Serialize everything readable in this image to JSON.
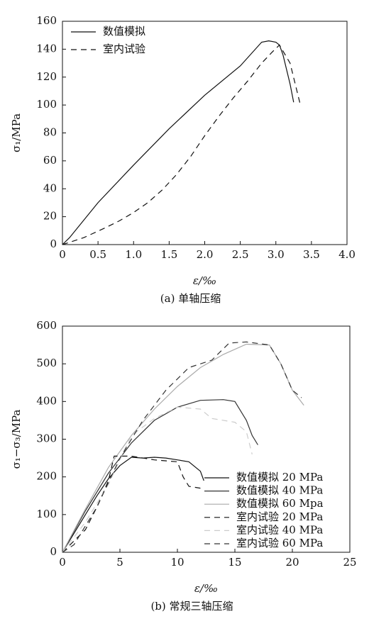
{
  "chart_data": [
    {
      "type": "line",
      "caption": "(a) 单轴压缩",
      "xlabel": "ε/‰",
      "ylabel": "σ₁/MPa",
      "xlim": [
        0,
        4
      ],
      "ylim": [
        0,
        160
      ],
      "xticks": [
        0,
        0.5,
        {
          "value": 1,
          "label": "1.0"
        },
        1.5,
        {
          "value": 2,
          "label": "2.0"
        },
        2.5,
        {
          "value": 3,
          "label": "3.0"
        },
        3.5,
        {
          "value": 4,
          "label": "4.0"
        }
      ],
      "yticks": [
        0,
        20,
        40,
        60,
        80,
        100,
        120,
        140,
        160
      ],
      "legend": "upper left",
      "series": [
        {
          "name": "数值模拟",
          "color": "#111111",
          "dashed": false,
          "x": [
            0,
            0.1,
            0.5,
            1.0,
            1.5,
            2.0,
            2.5,
            2.8,
            2.9,
            3.0,
            3.05,
            3.1,
            3.2,
            3.25
          ],
          "values": [
            0,
            5,
            30,
            57,
            83,
            107,
            128,
            145,
            146,
            145,
            143,
            136,
            115,
            102
          ]
        },
        {
          "name": "室内试验",
          "color": "#111111",
          "dashed": true,
          "x": [
            0,
            0.3,
            0.6,
            0.8,
            1.0,
            1.2,
            1.4,
            1.6,
            1.8,
            2.0,
            2.2,
            2.4,
            2.6,
            2.8,
            2.95,
            3.05,
            3.2,
            3.35
          ],
          "values": [
            0,
            5,
            12,
            17,
            23,
            30,
            39,
            50,
            63,
            78,
            92,
            105,
            117,
            130,
            138,
            143,
            130,
            99
          ]
        }
      ]
    },
    {
      "type": "line",
      "caption": "(b) 常规三轴压缩",
      "xlabel": "ε/‰",
      "ylabel": "σ₁−σ₃/MPa",
      "xlim": [
        0,
        25
      ],
      "ylim": [
        0,
        600
      ],
      "xticks": [
        0,
        5,
        10,
        15,
        20,
        25
      ],
      "yticks": [
        0,
        100,
        200,
        300,
        400,
        500,
        600
      ],
      "legend": "lower right",
      "series": [
        {
          "name": "数值模拟 20 MPa",
          "color": "#111111",
          "dashed": false,
          "x": [
            0,
            1,
            2,
            3,
            4,
            5,
            6,
            7,
            8,
            9,
            10,
            11,
            12,
            12.3
          ],
          "values": [
            0,
            50,
            100,
            150,
            195,
            230,
            252,
            250,
            252,
            250,
            245,
            240,
            215,
            190
          ]
        },
        {
          "name": "数值模拟 40 MPa",
          "color": "#333333",
          "dashed": false,
          "x": [
            0,
            2,
            4,
            6,
            8,
            10,
            12,
            14,
            15,
            16,
            16.5,
            17
          ],
          "values": [
            0,
            110,
            210,
            290,
            350,
            385,
            403,
            405,
            400,
            350,
            310,
            285
          ]
        },
        {
          "name": "数值模拟 60 Mpa",
          "color": "#aaaaaa",
          "dashed": false,
          "x": [
            0,
            2,
            4,
            6,
            8,
            10,
            12,
            14,
            16,
            18,
            19,
            20,
            21
          ],
          "values": [
            0,
            115,
            225,
            310,
            380,
            440,
            490,
            525,
            552,
            550,
            500,
            430,
            390
          ]
        },
        {
          "name": "室内试验 20 MPa",
          "color": "#111111",
          "dashed": true,
          "x": [
            0,
            2,
            3,
            4,
            4.5,
            6,
            8,
            10,
            10.5,
            11,
            12
          ],
          "values": [
            0,
            60,
            120,
            190,
            255,
            255,
            245,
            240,
            200,
            175,
            170
          ]
        },
        {
          "name": "室内试验 40 MPa",
          "color": "#cccccc",
          "dashed": true,
          "x": [
            0,
            2,
            4,
            6,
            8,
            10,
            12,
            13,
            15,
            16,
            16.5
          ],
          "values": [
            0,
            80,
            180,
            310,
            355,
            385,
            380,
            355,
            345,
            320,
            260
          ]
        },
        {
          "name": "室内试验 60 MPa",
          "color": "#333333",
          "dashed": true,
          "x": [
            0,
            1,
            3,
            5,
            7,
            9,
            11,
            13,
            14.5,
            16,
            18,
            19,
            20,
            20.8
          ],
          "values": [
            0,
            20,
            120,
            250,
            350,
            430,
            490,
            510,
            555,
            558,
            550,
            500,
            430,
            410
          ]
        }
      ]
    }
  ]
}
